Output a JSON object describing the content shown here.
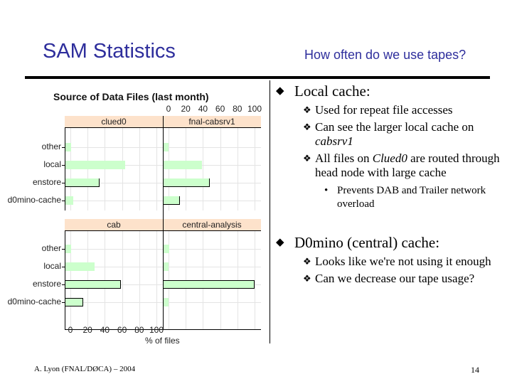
{
  "slide": {
    "title": "SAM Statistics",
    "subtitle": "How often do we use tapes?",
    "footer": "A. Lyon (FNAL/DØCA) – 2004",
    "page_number": "14"
  },
  "bullets": [
    {
      "text": "Local cache:",
      "children": [
        {
          "text": "Used for repeat file accesses"
        },
        {
          "parts": [
            "Can see the larger local cache on ",
            "cabsrv1",
            ""
          ]
        },
        {
          "parts": [
            "All files on ",
            "Clued0",
            " are routed through head node with large cache"
          ],
          "children": [
            {
              "text": "Prevents DAB and Trailer network overload"
            }
          ]
        }
      ]
    },
    {
      "text": "D0mino (central) cache:",
      "children": [
        {
          "text": "Looks like we're not using it enough"
        },
        {
          "text": "Can we decrease our tape usage?"
        }
      ]
    }
  ],
  "chart_data": {
    "type": "bar",
    "orientation": "horizontal",
    "title": "Source of Data Files (last month)",
    "xlabel": "% of files",
    "ylabel": "",
    "xlim": [
      0,
      100
    ],
    "xticks": [
      "0",
      "20",
      "40",
      "60",
      "80",
      "100"
    ],
    "categories": [
      "other",
      "local",
      "enstore",
      "d0mino-cache"
    ],
    "grid": true,
    "colors": {
      "bar": "#ccffcc",
      "strip": "#fde2cb"
    },
    "panels": [
      {
        "name": "clued0",
        "values": [
          1,
          64,
          34,
          3
        ]
      },
      {
        "name": "fnal-cabsrv1",
        "values": [
          0,
          39,
          48,
          13
        ]
      },
      {
        "name": "cab",
        "values": [
          1,
          28,
          59,
          15
        ]
      },
      {
        "name": "central-analysis",
        "values": [
          1,
          0,
          100,
          0
        ]
      }
    ]
  }
}
